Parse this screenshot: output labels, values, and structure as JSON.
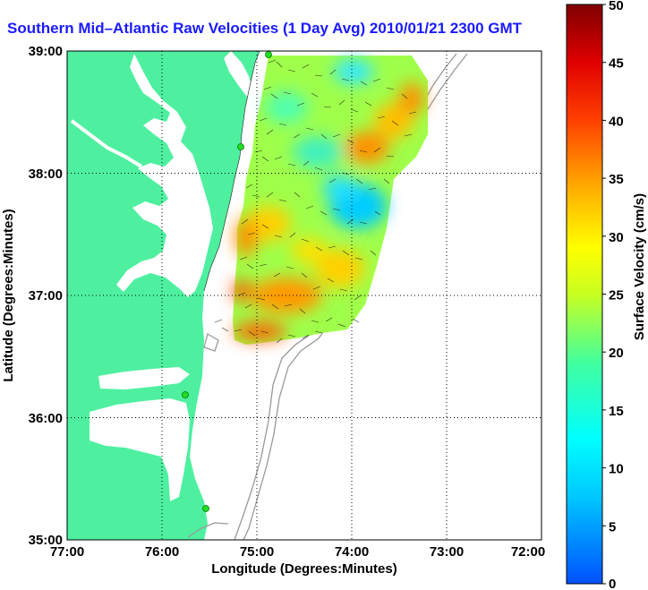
{
  "title": "Southern Mid–Atlantic Raw Velocities (1 Day Avg) 2010/01/21 2300 GMT",
  "map": {
    "xlabel": "Longitude (Degrees:Minutes)",
    "ylabel": "Latitude (Degrees:Minutes)",
    "x_ticks": [
      "77:00",
      "76:00",
      "75:00",
      "74:00",
      "73:00",
      "72:00"
    ],
    "y_ticks": [
      "39:00",
      "38:00",
      "37:00",
      "36:00",
      "35:00"
    ],
    "land_color": "#4ef0a0",
    "water_color": "#ffffff",
    "bathymetry_color": "#999999",
    "station_color": "#22dd22"
  },
  "colorbar": {
    "label": "Surface Velocity (cm/s)",
    "ticks": [
      "50",
      "45",
      "40",
      "35",
      "30",
      "25",
      "20",
      "15",
      "10",
      "5",
      "0"
    ],
    "range": [
      0,
      50
    ],
    "colormap": "jet"
  },
  "chart_data": {
    "type": "heatmap",
    "title": "Southern Mid–Atlantic Raw Velocities (1 Day Avg) 2010/01/21 2300 GMT",
    "xlabel": "Longitude (Degrees:Minutes)",
    "ylabel": "Latitude (Degrees:Minutes)",
    "xlim": [
      "77:00 W",
      "72:00 W"
    ],
    "ylim": [
      "35:00 N",
      "39:00 N"
    ],
    "value_label": "Surface Velocity (cm/s)",
    "value_range": [
      0,
      50
    ],
    "grid": true
  }
}
